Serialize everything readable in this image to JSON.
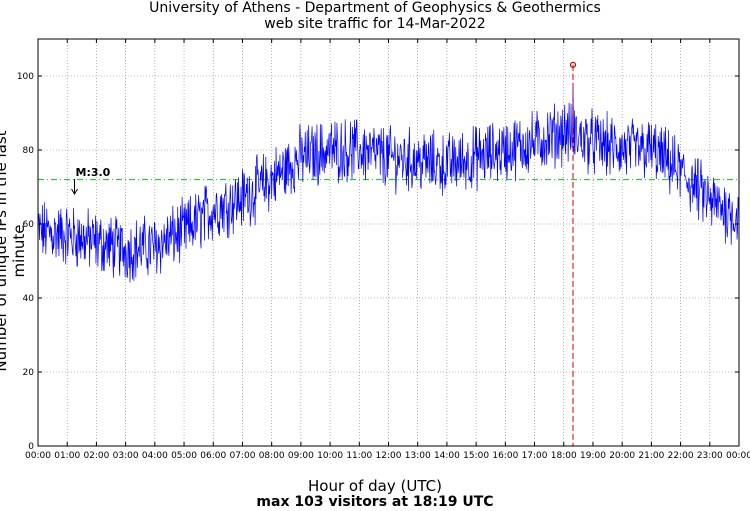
{
  "chart_data": {
    "type": "line",
    "title": "University of Athens - Department of Geophysics & Geothermics",
    "subtitle": "web site traffic for 14-Mar-2022",
    "xlabel": "Hour of day (UTC)",
    "ylabel": "Number of unique IPs in the last minute",
    "footer": "max 103 visitors at 18:19 UTC",
    "ylim": [
      0,
      110
    ],
    "yticks": [
      0,
      20,
      40,
      60,
      80,
      100
    ],
    "xticks": [
      "00:00",
      "01:00",
      "02:00",
      "03:00",
      "04:00",
      "05:00",
      "06:00",
      "07:00",
      "08:00",
      "09:00",
      "10:00",
      "11:00",
      "12:00",
      "13:00",
      "14:00",
      "15:00",
      "16:00",
      "17:00",
      "18:00",
      "19:00",
      "20:00",
      "21:00",
      "22:00",
      "23:00",
      "00:00"
    ],
    "grid": true,
    "average": 72,
    "max": {
      "time": "18:19",
      "value": 103
    },
    "annotation": {
      "label": "M:3.0",
      "time": "01:15",
      "value": 70
    },
    "series_hourly_mean": [
      {
        "hour": 0,
        "value": 58
      },
      {
        "hour": 1,
        "value": 57
      },
      {
        "hour": 2,
        "value": 55
      },
      {
        "hour": 3,
        "value": 53
      },
      {
        "hour": 4,
        "value": 54
      },
      {
        "hour": 5,
        "value": 58
      },
      {
        "hour": 6,
        "value": 64
      },
      {
        "hour": 7,
        "value": 67
      },
      {
        "hour": 8,
        "value": 72
      },
      {
        "hour": 9,
        "value": 78
      },
      {
        "hour": 10,
        "value": 80
      },
      {
        "hour": 11,
        "value": 80
      },
      {
        "hour": 12,
        "value": 78
      },
      {
        "hour": 13,
        "value": 77
      },
      {
        "hour": 14,
        "value": 76
      },
      {
        "hour": 15,
        "value": 78
      },
      {
        "hour": 16,
        "value": 80
      },
      {
        "hour": 17,
        "value": 82
      },
      {
        "hour": 18,
        "value": 85
      },
      {
        "hour": 19,
        "value": 82
      },
      {
        "hour": 20,
        "value": 80
      },
      {
        "hour": 21,
        "value": 80
      },
      {
        "hour": 22,
        "value": 74
      },
      {
        "hour": 23,
        "value": 66
      },
      {
        "hour": 24,
        "value": 62
      }
    ],
    "colors": {
      "line": "#0000ff",
      "average": "#00cc00",
      "max": "#cc0000",
      "grid": "#808080"
    }
  }
}
